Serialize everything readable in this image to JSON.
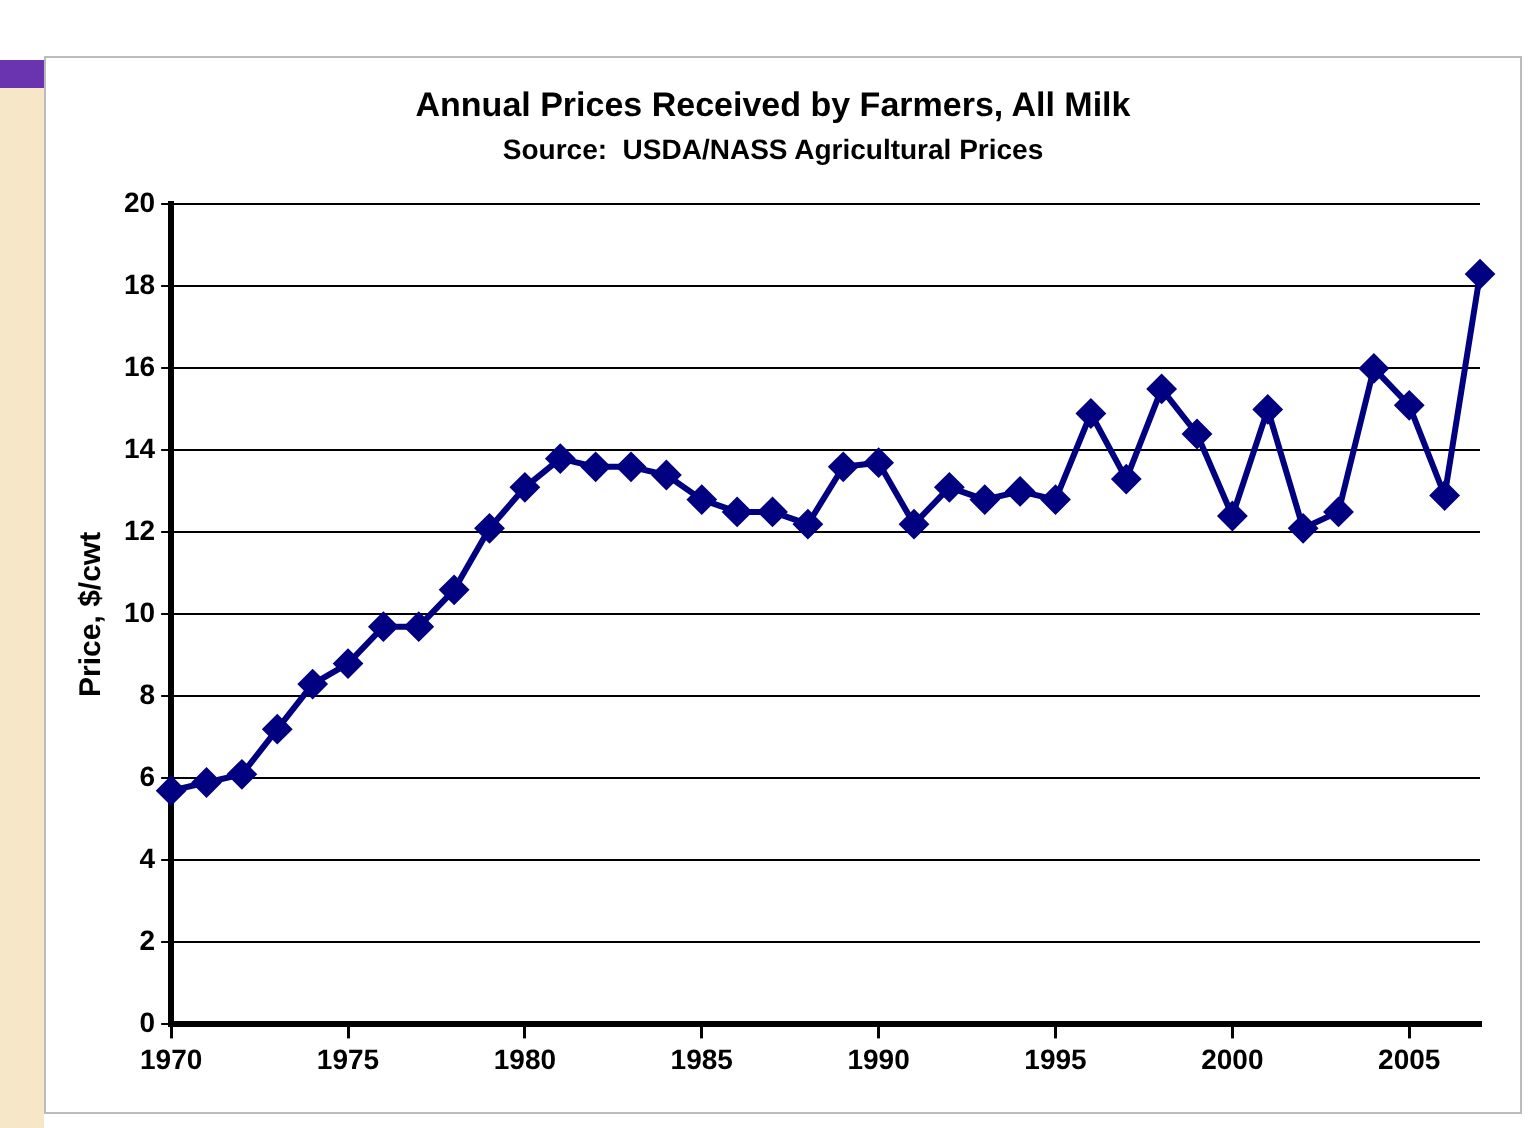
{
  "chart_data": {
    "type": "line",
    "title": "Annual Prices Received by Farmers, All Milk",
    "subtitle": "Source:  USDA/NASS Agricultural Prices",
    "ylabel": "Price, $/cwt",
    "categories": [
      "1970",
      null,
      null,
      null,
      null,
      "1975",
      null,
      null,
      null,
      null,
      "1980",
      null,
      null,
      null,
      null,
      "1985",
      null,
      null,
      null,
      null,
      "1990",
      null,
      null,
      null,
      null,
      "1995",
      null,
      null,
      null,
      null,
      "2000",
      null,
      null,
      null,
      null,
      "2005",
      null,
      null
    ],
    "series": [
      {
        "color": "#000080",
        "values": [
          5.7,
          5.9,
          6.1,
          7.2,
          8.3,
          8.8,
          9.7,
          9.7,
          10.6,
          12.1,
          13.1,
          13.8,
          13.6,
          13.6,
          13.4,
          12.8,
          12.5,
          12.5,
          12.2,
          13.6,
          13.7,
          12.2,
          13.1,
          12.8,
          13.0,
          12.8,
          14.9,
          13.3,
          15.5,
          14.4,
          12.4,
          15.0,
          12.1,
          12.5,
          16.0,
          15.1,
          12.9,
          18.3
        ]
      }
    ],
    "ylim": [
      0,
      20
    ],
    "yticks": [
      0,
      2,
      4,
      6,
      8,
      10,
      12,
      14,
      16,
      18,
      20
    ],
    "grid": "y",
    "legend": false,
    "marker": "diamond",
    "line_style": "solid"
  }
}
